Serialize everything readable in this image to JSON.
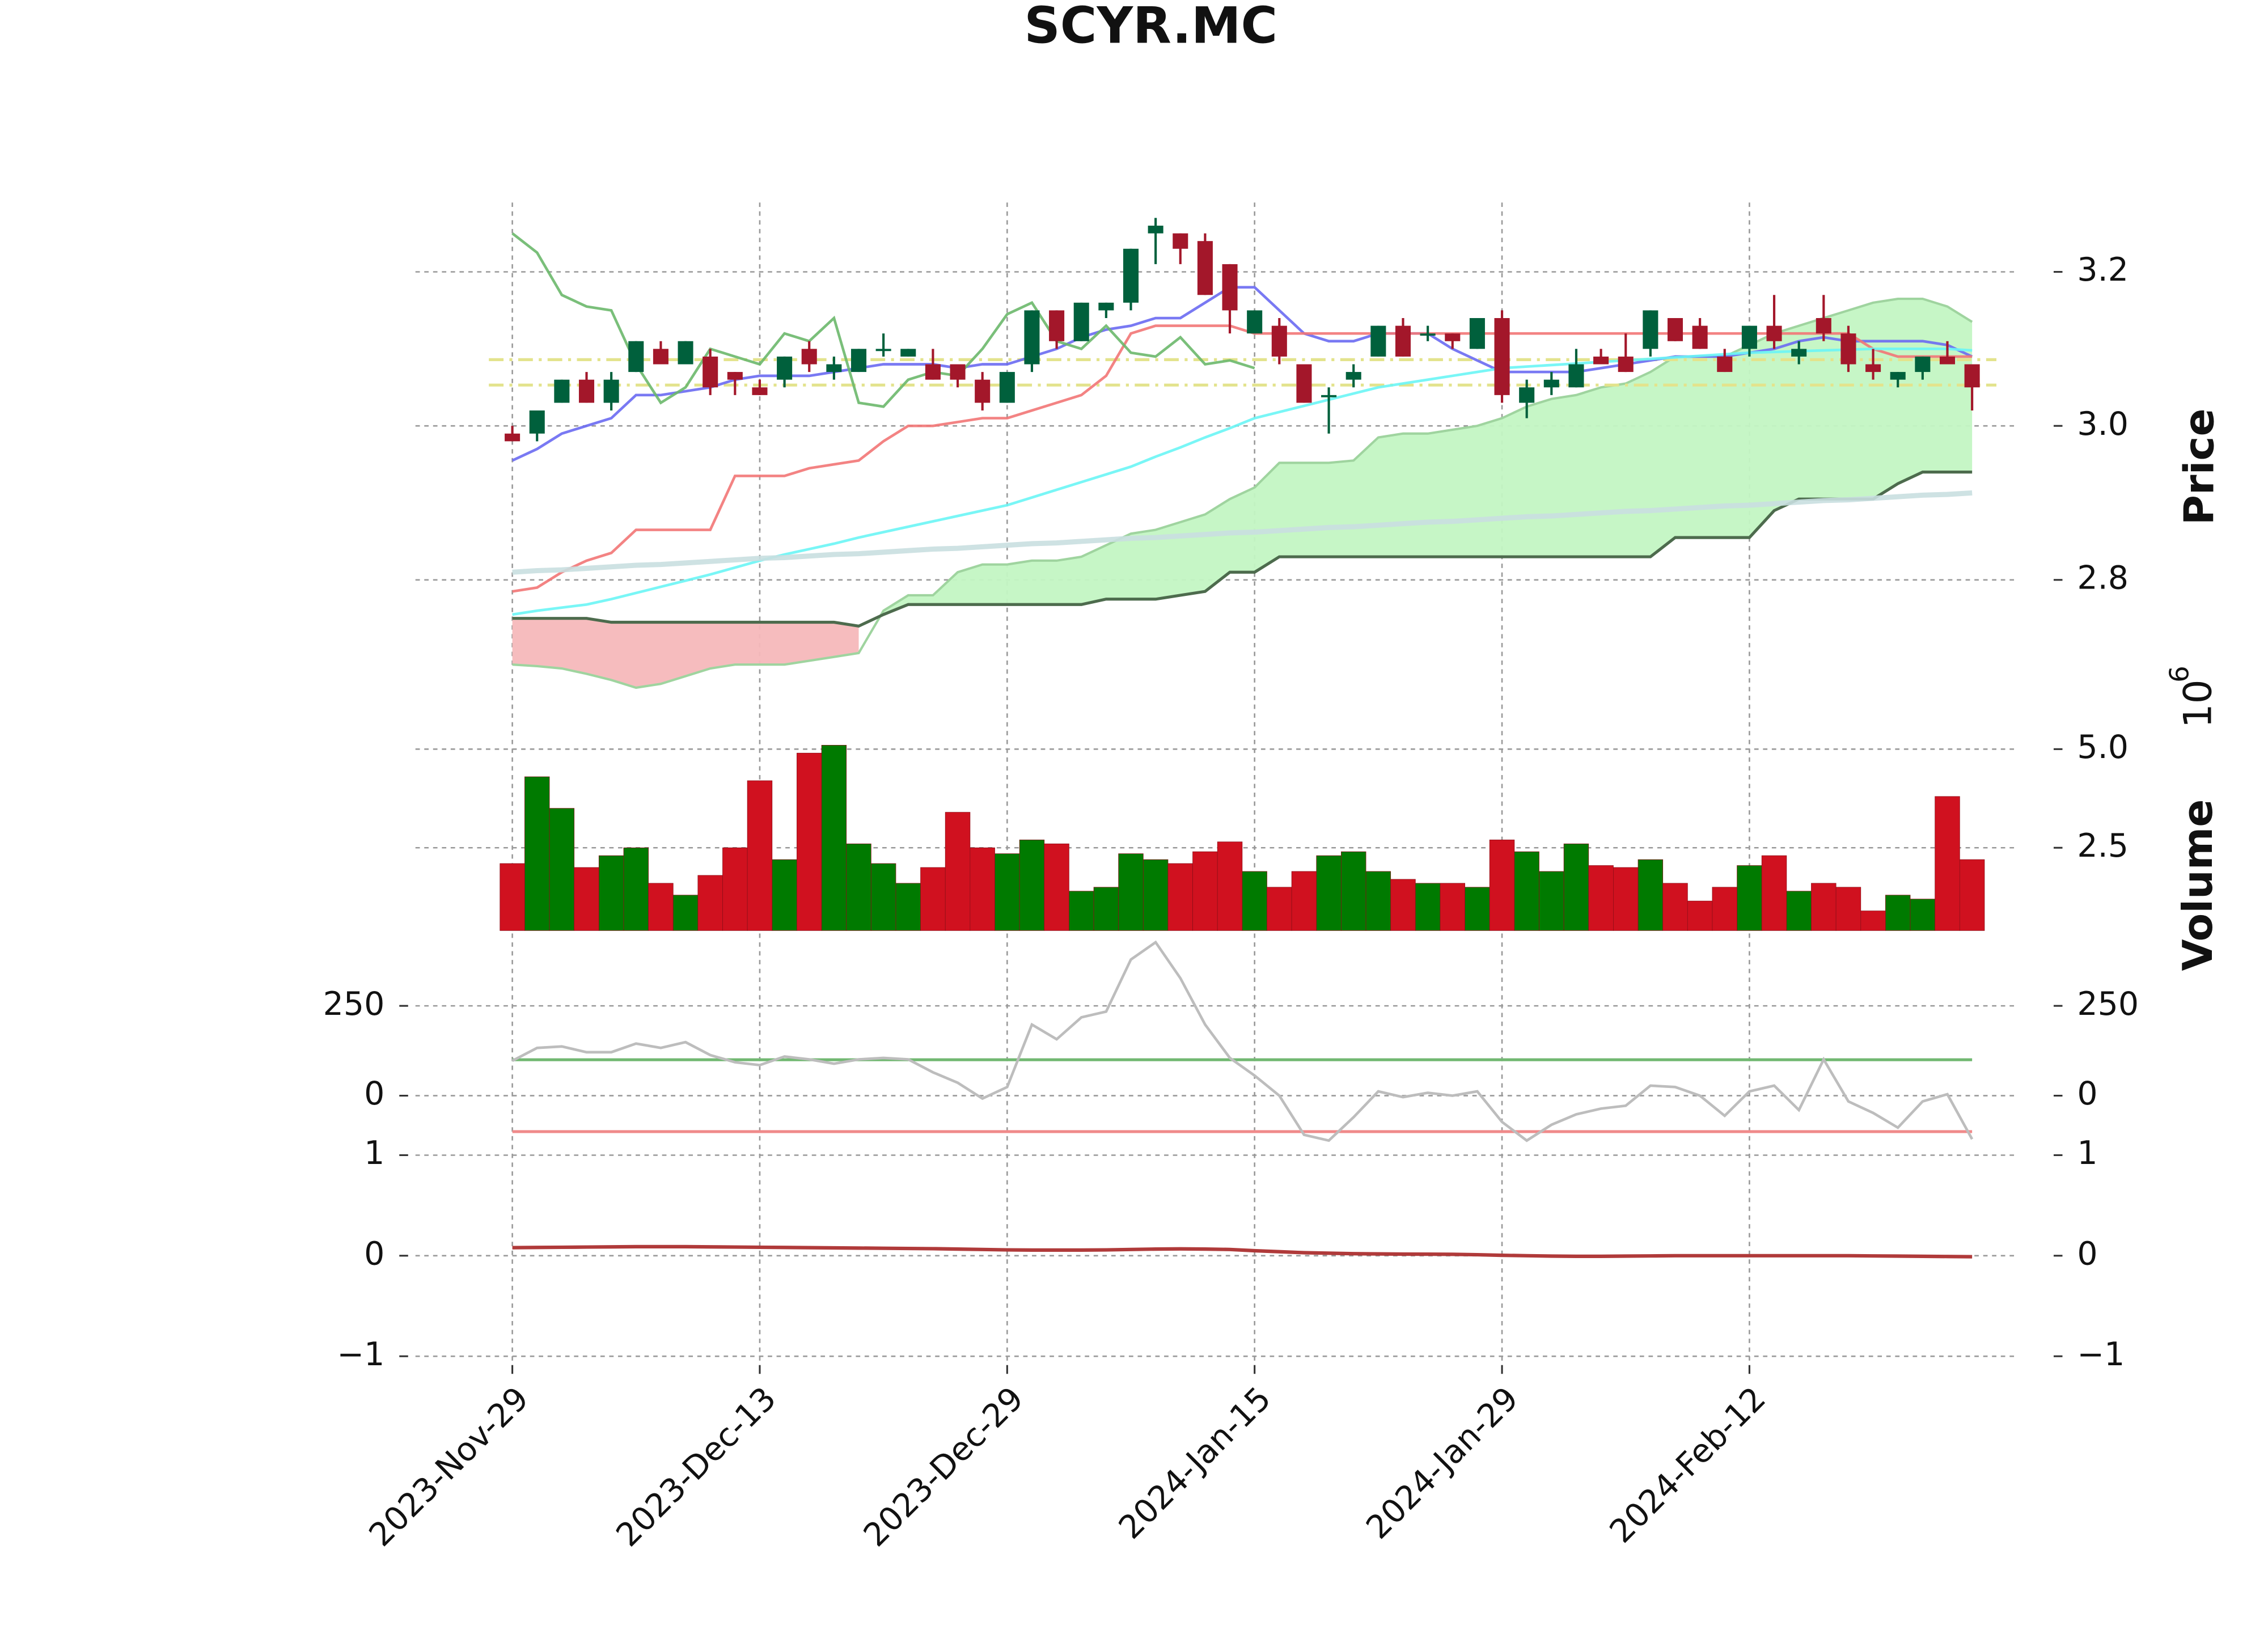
{
  "chart_data": {
    "type": "candlestick",
    "title": "SCYR.MC",
    "categories": [
      "2023-Nov-29",
      null,
      null,
      null,
      null,
      null,
      null,
      null,
      null,
      null,
      "2023-Dec-13",
      null,
      null,
      null,
      null,
      null,
      null,
      null,
      null,
      null,
      "2023-Dec-29",
      null,
      null,
      null,
      null,
      null,
      null,
      null,
      null,
      null,
      "2024-Jan-15",
      null,
      null,
      null,
      null,
      null,
      null,
      null,
      null,
      null,
      "2024-Jan-29",
      null,
      null,
      null,
      null,
      null,
      null,
      null,
      null,
      null,
      "2024-Feb-12",
      null,
      null,
      null,
      null,
      null,
      null,
      null,
      null,
      null
    ],
    "open": [
      2.99,
      2.99,
      3.03,
      3.06,
      3.03,
      3.07,
      3.1,
      3.08,
      3.09,
      3.07,
      3.05,
      3.06,
      3.1,
      3.07,
      3.07,
      3.1,
      3.09,
      3.08,
      3.08,
      3.06,
      3.03,
      3.08,
      3.15,
      3.11,
      3.15,
      3.16,
      3.25,
      3.25,
      3.24,
      3.21,
      3.12,
      3.13,
      3.08,
      3.04,
      3.06,
      3.09,
      3.13,
      3.12,
      3.12,
      3.1,
      3.14,
      3.03,
      3.05,
      3.05,
      3.09,
      3.09,
      3.1,
      3.14,
      3.13,
      3.09,
      3.1,
      3.13,
      3.09,
      3.14,
      3.12,
      3.08,
      3.06,
      3.07,
      3.09,
      3.08
    ],
    "high": [
      3.0,
      3.02,
      3.06,
      3.07,
      3.07,
      3.11,
      3.11,
      3.11,
      3.1,
      3.07,
      3.06,
      3.09,
      3.11,
      3.09,
      3.1,
      3.12,
      3.1,
      3.1,
      3.08,
      3.07,
      3.07,
      3.15,
      3.15,
      3.16,
      3.16,
      3.23,
      3.27,
      3.25,
      3.25,
      3.21,
      3.15,
      3.14,
      3.08,
      3.05,
      3.08,
      3.13,
      3.14,
      3.13,
      3.12,
      3.14,
      3.15,
      3.06,
      3.07,
      3.1,
      3.1,
      3.12,
      3.15,
      3.14,
      3.14,
      3.1,
      3.13,
      3.17,
      3.11,
      3.17,
      3.13,
      3.1,
      3.07,
      3.09,
      3.11,
      3.08
    ],
    "low": [
      2.98,
      2.98,
      3.03,
      3.03,
      3.02,
      3.07,
      3.08,
      3.08,
      3.04,
      3.04,
      3.04,
      3.05,
      3.07,
      3.06,
      3.07,
      3.09,
      3.09,
      3.06,
      3.05,
      3.02,
      3.03,
      3.07,
      3.1,
      3.11,
      3.14,
      3.15,
      3.21,
      3.21,
      3.17,
      3.12,
      3.12,
      3.08,
      3.03,
      2.99,
      3.05,
      3.09,
      3.09,
      3.11,
      3.1,
      3.1,
      3.03,
      3.01,
      3.04,
      3.05,
      3.08,
      3.07,
      3.09,
      3.11,
      3.1,
      3.07,
      3.09,
      3.1,
      3.08,
      3.11,
      3.07,
      3.06,
      3.05,
      3.06,
      3.08,
      3.02
    ],
    "close": [
      2.98,
      3.02,
      3.06,
      3.03,
      3.06,
      3.11,
      3.08,
      3.11,
      3.05,
      3.06,
      3.04,
      3.09,
      3.08,
      3.08,
      3.1,
      3.1,
      3.1,
      3.06,
      3.06,
      3.03,
      3.07,
      3.15,
      3.11,
      3.16,
      3.16,
      3.23,
      3.26,
      3.23,
      3.17,
      3.15,
      3.15,
      3.09,
      3.03,
      3.04,
      3.07,
      3.13,
      3.09,
      3.12,
      3.11,
      3.14,
      3.04,
      3.05,
      3.06,
      3.08,
      3.08,
      3.07,
      3.15,
      3.11,
      3.1,
      3.07,
      3.13,
      3.11,
      3.1,
      3.12,
      3.08,
      3.07,
      3.07,
      3.09,
      3.08,
      3.05
    ],
    "up_color": "#00603c",
    "down_color": "#a3172a",
    "ylabel": "Price",
    "ylim": [
      2.6,
      3.29
    ],
    "yticks": [
      2.8,
      {
        "value": 3,
        "label": "3.0"
      },
      3.2
    ],
    "grid": true,
    "hlines": {
      "values": [
        3.086,
        3.053
      ],
      "color": "#e3e38c"
    },
    "lines": [
      {
        "color": "#6a6af2",
        "values": [
          2.955,
          2.97,
          2.99,
          3.0,
          3.01,
          3.04,
          3.04,
          3.045,
          3.05,
          3.06,
          3.065,
          3.065,
          3.065,
          3.07,
          3.075,
          3.08,
          3.08,
          3.08,
          3.075,
          3.08,
          3.08,
          3.09,
          3.1,
          3.115,
          3.125,
          3.13,
          3.14,
          3.14,
          3.16,
          3.18,
          3.18,
          3.15,
          3.12,
          3.11,
          3.11,
          3.12,
          3.12,
          3.12,
          3.1,
          3.085,
          3.07,
          3.07,
          3.07,
          3.07,
          3.075,
          3.08,
          3.085,
          3.09,
          3.09,
          3.09,
          3.095,
          3.1,
          3.11,
          3.115,
          3.11,
          3.11,
          3.11,
          3.11,
          3.105,
          3.09
        ]
      },
      {
        "color": "#f27676",
        "values": [
          2.785,
          2.79,
          2.81,
          2.825,
          2.835,
          2.865,
          2.865,
          2.865,
          2.865,
          2.935,
          2.935,
          2.935,
          2.945,
          2.95,
          2.955,
          2.98,
          3.0,
          3.0,
          3.005,
          3.01,
          3.01,
          3.02,
          3.03,
          3.04,
          3.065,
          3.12,
          3.13,
          3.13,
          3.13,
          3.13,
          3.12,
          3.12,
          3.12,
          3.12,
          3.12,
          3.12,
          3.12,
          3.12,
          3.12,
          3.12,
          3.12,
          3.12,
          3.12,
          3.12,
          3.12,
          3.12,
          3.12,
          3.12,
          3.12,
          3.12,
          3.12,
          3.12,
          3.12,
          3.12,
          3.12,
          3.1,
          3.09,
          3.09,
          3.09,
          3.09
        ]
      },
      {
        "color": "#6af5f5",
        "values": [
          2.755,
          2.76,
          2.764,
          2.768,
          2.775,
          2.783,
          2.791,
          2.799,
          2.807,
          2.816,
          2.825,
          2.833,
          2.84,
          2.847,
          2.855,
          2.862,
          2.869,
          2.876,
          2.883,
          2.89,
          2.897,
          2.907,
          2.917,
          2.927,
          2.937,
          2.947,
          2.96,
          2.972,
          2.985,
          2.997,
          3.01,
          3.018,
          3.026,
          3.034,
          3.042,
          3.05,
          3.055,
          3.06,
          3.065,
          3.07,
          3.075,
          3.077,
          3.079,
          3.081,
          3.083,
          3.085,
          3.087,
          3.089,
          3.091,
          3.093,
          3.095,
          3.096,
          3.097,
          3.098,
          3.099,
          3.1,
          3.1,
          3.1,
          3.1,
          3.098
        ]
      },
      {
        "color": "#c9dfe0",
        "values": [
          2.81,
          2.812,
          2.813,
          2.815,
          2.817,
          2.819,
          2.82,
          2.822,
          2.824,
          2.826,
          2.828,
          2.829,
          2.831,
          2.833,
          2.834,
          2.836,
          2.838,
          2.84,
          2.841,
          2.843,
          2.845,
          2.847,
          2.848,
          2.85,
          2.852,
          2.854,
          2.855,
          2.857,
          2.859,
          2.861,
          2.862,
          2.864,
          2.866,
          2.868,
          2.869,
          2.871,
          2.873,
          2.875,
          2.876,
          2.878,
          2.88,
          2.882,
          2.883,
          2.885,
          2.887,
          2.889,
          2.89,
          2.892,
          2.894,
          2.896,
          2.897,
          2.899,
          2.901,
          2.903,
          2.904,
          2.906,
          2.908,
          2.91,
          2.911,
          2.913
        ]
      },
      {
        "color": "#6cb86c",
        "values": [
          3.25,
          3.225,
          3.17,
          3.155,
          3.15,
          3.08,
          3.03,
          3.05,
          3.1,
          3.09,
          3.08,
          3.12,
          3.11,
          3.14,
          3.03,
          3.025,
          3.06,
          3.07,
          3.065,
          3.1,
          3.145,
          3.16,
          3.11,
          3.1,
          3.13,
          3.095,
          3.09,
          3.115,
          3.08,
          3.085,
          3.075,
          null,
          null,
          null,
          null,
          null,
          null,
          null,
          null,
          null,
          null,
          null,
          null,
          null,
          null,
          null,
          null,
          null,
          null,
          null,
          null,
          null,
          null,
          null,
          null,
          null,
          null,
          null,
          null,
          null
        ]
      }
    ],
    "ichimoku": {
      "span_a": [
        2.69,
        2.688,
        2.685,
        2.678,
        2.67,
        2.66,
        2.665,
        2.675,
        2.685,
        2.69,
        2.69,
        2.69,
        2.695,
        2.7,
        2.705,
        2.76,
        2.78,
        2.78,
        2.81,
        2.82,
        2.82,
        2.825,
        2.825,
        2.83,
        2.845,
        2.86,
        2.865,
        2.875,
        2.885,
        2.905,
        2.92,
        2.952,
        2.952,
        2.952,
        2.955,
        2.985,
        2.99,
        2.99,
        2.995,
        3.0,
        3.01,
        3.025,
        3.035,
        3.04,
        3.05,
        3.055,
        3.07,
        3.09,
        3.09,
        3.09,
        3.105,
        3.12,
        3.13,
        3.14,
        3.15,
        3.16,
        3.165,
        3.165,
        3.155,
        3.135
      ],
      "span_b": [
        2.75,
        2.75,
        2.75,
        2.75,
        2.745,
        2.745,
        2.745,
        2.745,
        2.745,
        2.745,
        2.745,
        2.745,
        2.745,
        2.745,
        2.74,
        2.755,
        2.768,
        2.768,
        2.768,
        2.768,
        2.768,
        2.768,
        2.768,
        2.768,
        2.775,
        2.775,
        2.775,
        2.78,
        2.785,
        2.81,
        2.81,
        2.83,
        2.83,
        2.83,
        2.83,
        2.83,
        2.83,
        2.83,
        2.83,
        2.83,
        2.83,
        2.83,
        2.83,
        2.83,
        2.83,
        2.83,
        2.83,
        2.855,
        2.855,
        2.855,
        2.855,
        2.89,
        2.905,
        2.905,
        2.905,
        2.905,
        2.925,
        2.94,
        2.94,
        2.94
      ],
      "up_color": "#c3f5c3",
      "down_color": "#f5b8bb",
      "line_a_color": "#9fd49f",
      "line_b_color": "#4d6b4d"
    },
    "volume": {
      "ylabel": "Volume",
      "offset_base": "10",
      "offset_exp": "6",
      "values": [
        2.1,
        4.3,
        3.5,
        2.0,
        2.3,
        2.5,
        1.6,
        1.3,
        1.8,
        2.5,
        4.2,
        2.2,
        4.9,
        5.1,
        2.6,
        2.1,
        1.6,
        2.0,
        3.4,
        2.5,
        2.35,
        2.7,
        2.6,
        1.4,
        1.5,
        2.35,
        2.2,
        2.1,
        2.4,
        2.65,
        1.9,
        1.5,
        1.9,
        2.3,
        2.4,
        1.9,
        1.7,
        1.6,
        1.6,
        1.5,
        2.7,
        2.4,
        1.9,
        2.6,
        2.05,
        2.0,
        2.2,
        1.6,
        1.15,
        1.5,
        2.05,
        2.3,
        1.4,
        1.6,
        1.5,
        0.9,
        1.3,
        1.2,
        3.8,
        2.2
      ],
      "ylim": [
        0.4,
        5.2
      ],
      "yticks": [
        2.5,
        {
          "value": 5,
          "label": "5.0"
        }
      ],
      "up_color": "#007a00",
      "down_color": "#d0111f"
    },
    "cci": {
      "values": [
        97,
        133,
        137,
        121,
        121,
        145,
        133,
        149,
        113,
        93,
        85,
        109,
        101,
        89,
        101,
        105,
        101,
        65,
        36,
        -8,
        24,
        198,
        157,
        218,
        234,
        379,
        427,
        327,
        198,
        105,
        56,
        0,
        -109,
        -125,
        -60,
        12,
        -4,
        8,
        0,
        12,
        -73,
        -125,
        -81,
        -52,
        -36,
        -28,
        28,
        24,
        0,
        -56,
        12,
        28,
        -40,
        101,
        -16,
        -48,
        -89,
        -16,
        4,
        -121
      ],
      "color": "#bdbdbd",
      "ylim": [
        -137,
        435
      ],
      "yticks": [
        0,
        250
      ],
      "hlines": [
        {
          "value": 100,
          "color": "#72b872"
        },
        {
          "value": -100,
          "color": "#f08a8a"
        }
      ]
    },
    "macd": {
      "values": [
        0.08,
        0.082,
        0.084,
        0.086,
        0.088,
        0.09,
        0.09,
        0.09,
        0.088,
        0.086,
        0.084,
        0.082,
        0.08,
        0.078,
        0.076,
        0.074,
        0.072,
        0.07,
        0.066,
        0.062,
        0.058,
        0.056,
        0.056,
        0.056,
        0.058,
        0.062,
        0.066,
        0.068,
        0.066,
        0.062,
        0.05,
        0.04,
        0.03,
        0.025,
        0.02,
        0.018,
        0.016,
        0.015,
        0.014,
        0.01,
        0.004,
        0,
        -0.004,
        -0.006,
        -0.006,
        -0.004,
        -0.002,
        0,
        0,
        0,
        0,
        0,
        0,
        0,
        0,
        -0.002,
        -0.004,
        -0.006,
        -0.008,
        -0.01
      ],
      "color": "#b03a3a",
      "ylim": [
        -1,
        1
      ],
      "yticks": [
        {
          "value": -1,
          "label": "−1"
        },
        0,
        1
      ]
    }
  }
}
